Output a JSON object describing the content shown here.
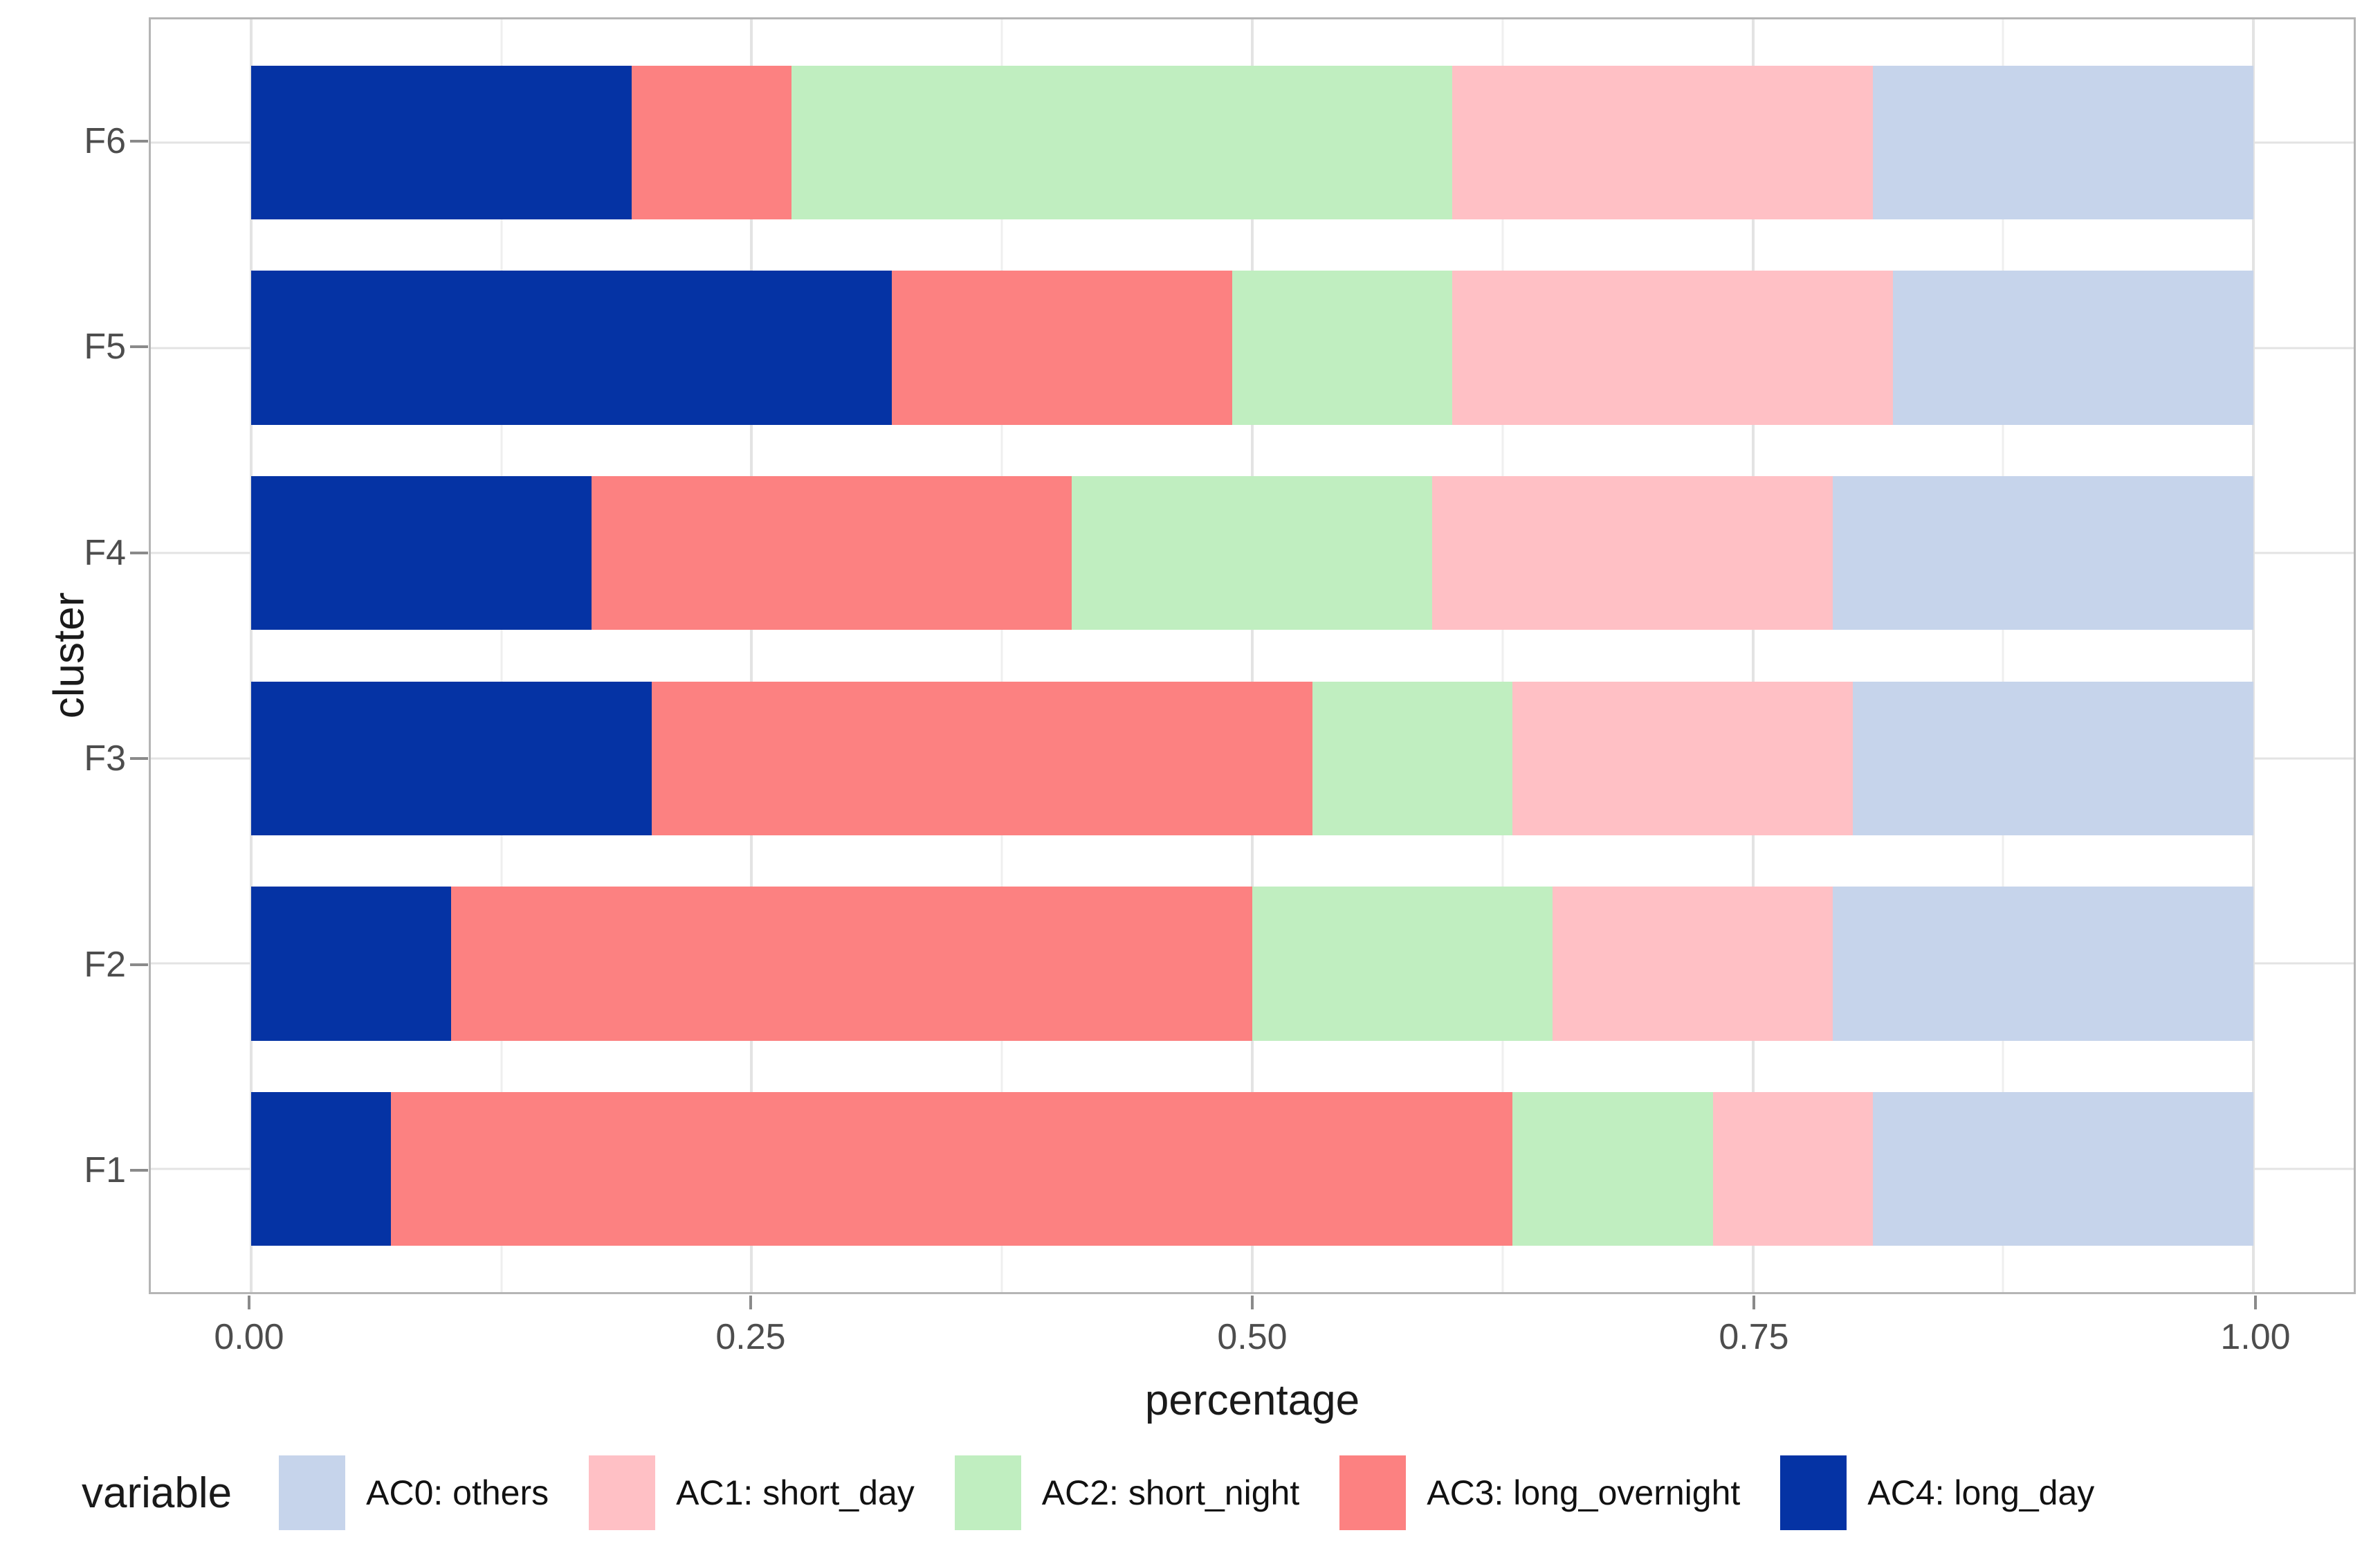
{
  "chart_data": {
    "type": "bar",
    "orientation": "horizontal",
    "stacked": true,
    "title": "",
    "xlabel": "percentage",
    "ylabel": "cluster",
    "categories": [
      "F1",
      "F2",
      "F3",
      "F4",
      "F5",
      "F6"
    ],
    "x_tick_labels": [
      "0.00",
      "0.25",
      "0.50",
      "0.75",
      "1.00"
    ],
    "x_tick_values": [
      0,
      0.25,
      0.5,
      0.75,
      1
    ],
    "xlim": [
      0,
      1
    ],
    "grid": {
      "major_x": [
        0,
        0.25,
        0.5,
        0.75,
        1
      ],
      "minor_x": [
        0.125,
        0.375,
        0.625,
        0.875
      ],
      "horizontal_at_category_centers": true
    },
    "legend": {
      "title": "variable",
      "position": "bottom"
    },
    "stack_order_left_to_right": [
      "AC4: long_day",
      "AC3: long_overnight",
      "AC2: short_night",
      "AC1: short_day",
      "AC0: others"
    ],
    "series": [
      {
        "name": "AC0: others",
        "color": "#C6D4EB",
        "values": [
          0.19,
          0.21,
          0.2,
          0.21,
          0.18,
          0.19
        ]
      },
      {
        "name": "AC1: short_day",
        "color": "#FFC0C5",
        "values": [
          0.08,
          0.14,
          0.17,
          0.2,
          0.22,
          0.21
        ]
      },
      {
        "name": "AC2: short_night",
        "color": "#C0EEC0",
        "values": [
          0.1,
          0.15,
          0.1,
          0.18,
          0.11,
          0.33
        ]
      },
      {
        "name": "AC3: long_overnight",
        "color": "#FC8181",
        "values": [
          0.56,
          0.4,
          0.33,
          0.24,
          0.17,
          0.08
        ]
      },
      {
        "name": "AC4: long_day",
        "color": "#0533A4",
        "values": [
          0.07,
          0.1,
          0.2,
          0.17,
          0.32,
          0.19
        ]
      }
    ],
    "panel_border_color": "#b5b5b5",
    "gridline_major_color": "#e3e3e3",
    "gridline_minor_color": "#efefef"
  }
}
